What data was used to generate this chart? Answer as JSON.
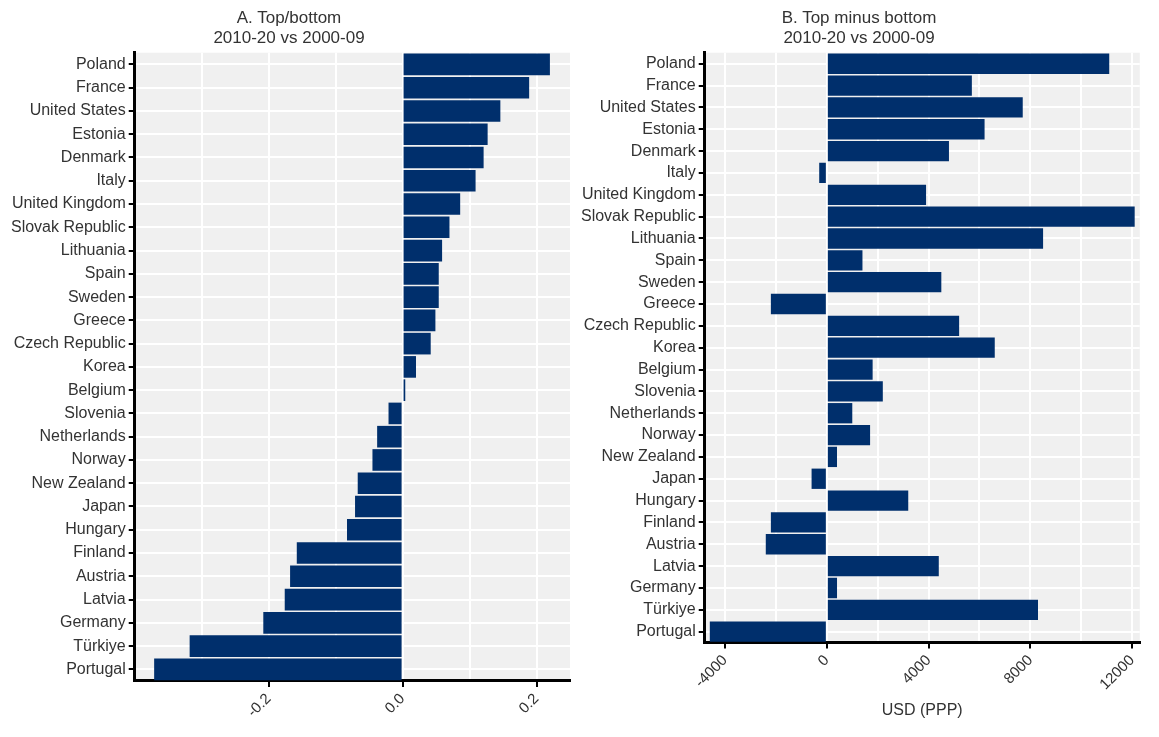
{
  "chart_data": [
    {
      "type": "bar",
      "orientation": "horizontal",
      "title": "A. Top/bottom",
      "subtitle": "2010-20 vs 2000-09",
      "categories": [
        "Poland",
        "France",
        "United States",
        "Estonia",
        "Denmark",
        "Italy",
        "United Kingdom",
        "Slovak Republic",
        "Lithuania",
        "Spain",
        "Sweden",
        "Greece",
        "Czech Republic",
        "Korea",
        "Belgium",
        "Slovenia",
        "Netherlands",
        "Norway",
        "New Zealand",
        "Japan",
        "Hungary",
        "Finland",
        "Austria",
        "Latvia",
        "Germany",
        "Türkiye",
        "Portugal"
      ],
      "values": [
        0.22,
        0.189,
        0.146,
        0.127,
        0.121,
        0.109,
        0.086,
        0.07,
        0.059,
        0.054,
        0.054,
        0.049,
        0.042,
        0.02,
        0.004,
        -0.021,
        -0.038,
        -0.045,
        -0.067,
        -0.071,
        -0.083,
        -0.158,
        -0.168,
        -0.176,
        -0.208,
        -0.318,
        -0.371
      ],
      "color": "#002f6c",
      "xlim": [
        -0.4,
        0.25
      ],
      "xticks": [
        {
          "value": -0.3,
          "label": null
        },
        {
          "value": -0.2,
          "label": "-0.2"
        },
        {
          "value": -0.1,
          "label": null
        },
        {
          "value": 0,
          "label": "0.0"
        },
        {
          "value": 0.1,
          "label": null
        },
        {
          "value": 0.2,
          "label": "0.2"
        }
      ],
      "grid": true,
      "legend": false
    },
    {
      "type": "bar",
      "orientation": "horizontal",
      "title": "B. Top minus bottom",
      "subtitle": "2010-20 vs 2000-09",
      "xlabel": "USD (PPP)",
      "categories": [
        "Poland",
        "France",
        "United States",
        "Estonia",
        "Denmark",
        "Italy",
        "United Kingdom",
        "Slovak Republic",
        "Lithuania",
        "Spain",
        "Sweden",
        "Greece",
        "Czech Republic",
        "Korea",
        "Belgium",
        "Slovenia",
        "Netherlands",
        "Norway",
        "New Zealand",
        "Japan",
        "Hungary",
        "Finland",
        "Austria",
        "Latvia",
        "Germany",
        "Türkiye",
        "Portugal"
      ],
      "values": [
        11100,
        5700,
        7700,
        6200,
        4800,
        -300,
        3900,
        12100,
        8500,
        1400,
        4500,
        -2200,
        5200,
        6600,
        1800,
        2200,
        1000,
        1700,
        400,
        -600,
        3200,
        -2200,
        -2400,
        4400,
        400,
        8300,
        -4600
      ],
      "color": "#002f6c",
      "xlim": [
        -4800,
        12300
      ],
      "xticks": [
        {
          "value": -4000,
          "label": "-4000"
        },
        {
          "value": -2000,
          "label": null
        },
        0,
        {
          "value": 2000,
          "label": null
        },
        4000,
        {
          "value": 6000,
          "label": null
        },
        8000,
        {
          "value": 10000,
          "label": null
        },
        12000
      ],
      "grid": true,
      "legend": false
    }
  ]
}
